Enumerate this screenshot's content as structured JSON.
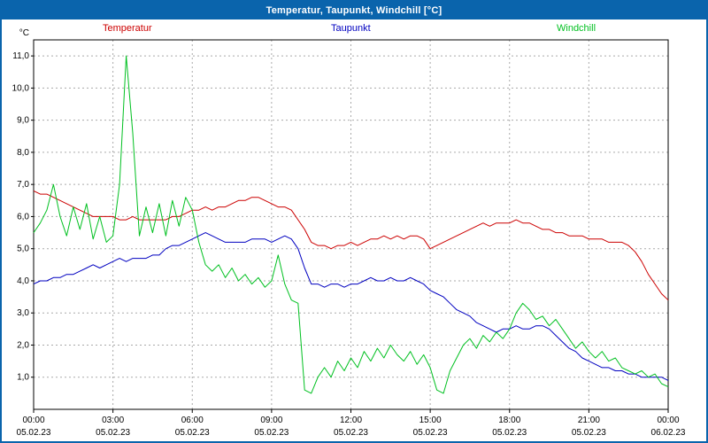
{
  "window_title": "Temperatur, Taupunkt, Windchill [°C]",
  "colors": {
    "titlebar_bg": "#0a64ac",
    "border": "#0a64ac",
    "grid": "#aaaaaa",
    "plot_border": "#000000",
    "temperatur": "#cc0000",
    "taupunkt": "#0000c0",
    "windchill": "#00c020"
  },
  "chart_data": {
    "type": "line",
    "title": "Temperatur, Taupunkt, Windchill [°C]",
    "y_unit": "°C",
    "ylim": [
      0,
      11.5
    ],
    "y_gridlines": [
      1,
      2,
      3,
      4,
      5,
      6,
      7,
      8,
      9,
      10,
      11
    ],
    "y_tick_labels": [
      "1,0",
      "2,0",
      "3,0",
      "4,0",
      "5,0",
      "6,0",
      "7,0",
      "8,0",
      "9,0",
      "10,0",
      "11,0"
    ],
    "x_hours": 24,
    "sample_interval_hours": 0.25,
    "x_ticks": [
      0,
      3,
      6,
      9,
      12,
      15,
      18,
      21,
      24
    ],
    "x_time_labels": [
      "00:00",
      "03:00",
      "06:00",
      "09:00",
      "12:00",
      "15:00",
      "18:00",
      "21:00",
      "00:00"
    ],
    "x_date_labels": [
      "05.02.23",
      "05.02.23",
      "05.02.23",
      "05.02.23",
      "05.02.23",
      "05.02.23",
      "05.02.23",
      "05.02.23",
      "06.02.23"
    ],
    "grid": true,
    "legend_position": "top",
    "series": [
      {
        "name": "Temperatur",
        "color": "#cc0000",
        "values": [
          6.8,
          6.7,
          6.7,
          6.6,
          6.5,
          6.4,
          6.3,
          6.2,
          6.1,
          6.0,
          6.0,
          6.0,
          6.0,
          5.9,
          5.9,
          6.0,
          5.9,
          5.9,
          5.9,
          5.9,
          5.9,
          6.0,
          6.0,
          6.1,
          6.2,
          6.2,
          6.3,
          6.2,
          6.3,
          6.3,
          6.4,
          6.5,
          6.5,
          6.6,
          6.6,
          6.5,
          6.4,
          6.3,
          6.3,
          6.2,
          5.9,
          5.6,
          5.2,
          5.1,
          5.1,
          5.0,
          5.1,
          5.1,
          5.2,
          5.1,
          5.2,
          5.3,
          5.3,
          5.4,
          5.3,
          5.4,
          5.3,
          5.4,
          5.4,
          5.3,
          5.0,
          5.1,
          5.2,
          5.3,
          5.4,
          5.5,
          5.6,
          5.7,
          5.8,
          5.7,
          5.8,
          5.8,
          5.8,
          5.9,
          5.8,
          5.8,
          5.7,
          5.6,
          5.6,
          5.5,
          5.5,
          5.4,
          5.4,
          5.4,
          5.3,
          5.3,
          5.3,
          5.2,
          5.2,
          5.2,
          5.1,
          4.9,
          4.6,
          4.2,
          3.9,
          3.6,
          3.4
        ]
      },
      {
        "name": "Taupunkt",
        "color": "#0000c0",
        "values": [
          3.9,
          4.0,
          4.0,
          4.1,
          4.1,
          4.2,
          4.2,
          4.3,
          4.4,
          4.5,
          4.4,
          4.5,
          4.6,
          4.7,
          4.6,
          4.7,
          4.7,
          4.7,
          4.8,
          4.8,
          5.0,
          5.1,
          5.1,
          5.2,
          5.3,
          5.4,
          5.5,
          5.4,
          5.3,
          5.2,
          5.2,
          5.2,
          5.2,
          5.3,
          5.3,
          5.3,
          5.2,
          5.3,
          5.4,
          5.3,
          5.0,
          4.4,
          3.9,
          3.9,
          3.8,
          3.9,
          3.9,
          3.8,
          3.9,
          3.9,
          4.0,
          4.1,
          4.0,
          4.0,
          4.1,
          4.0,
          4.0,
          4.1,
          4.0,
          3.9,
          3.7,
          3.6,
          3.5,
          3.3,
          3.1,
          3.0,
          2.9,
          2.7,
          2.6,
          2.5,
          2.4,
          2.5,
          2.5,
          2.6,
          2.5,
          2.5,
          2.6,
          2.6,
          2.5,
          2.3,
          2.1,
          1.9,
          1.8,
          1.6,
          1.5,
          1.4,
          1.3,
          1.3,
          1.2,
          1.2,
          1.1,
          1.1,
          1.0,
          1.0,
          1.0,
          1.0,
          0.9
        ]
      },
      {
        "name": "Windchill",
        "color": "#00c020",
        "values": [
          5.5,
          5.8,
          6.2,
          7.0,
          6.0,
          5.4,
          6.3,
          5.6,
          6.4,
          5.3,
          6.0,
          5.2,
          5.4,
          7.0,
          11.0,
          8.6,
          5.4,
          6.3,
          5.5,
          6.4,
          5.4,
          6.5,
          5.7,
          6.6,
          6.2,
          5.2,
          4.5,
          4.3,
          4.5,
          4.1,
          4.4,
          4.0,
          4.2,
          3.9,
          4.1,
          3.8,
          4.0,
          4.8,
          3.9,
          3.4,
          3.3,
          0.6,
          0.5,
          1.0,
          1.3,
          1.0,
          1.5,
          1.2,
          1.6,
          1.3,
          1.8,
          1.5,
          1.9,
          1.6,
          2.0,
          1.7,
          1.5,
          1.8,
          1.4,
          1.7,
          1.3,
          0.6,
          0.5,
          1.2,
          1.6,
          2.0,
          2.2,
          1.9,
          2.3,
          2.1,
          2.4,
          2.2,
          2.5,
          3.0,
          3.3,
          3.1,
          2.8,
          2.9,
          2.6,
          2.8,
          2.5,
          2.2,
          1.9,
          2.1,
          1.8,
          1.6,
          1.8,
          1.5,
          1.6,
          1.3,
          1.2,
          1.1,
          1.2,
          1.0,
          1.1,
          0.8,
          0.7
        ]
      }
    ]
  }
}
